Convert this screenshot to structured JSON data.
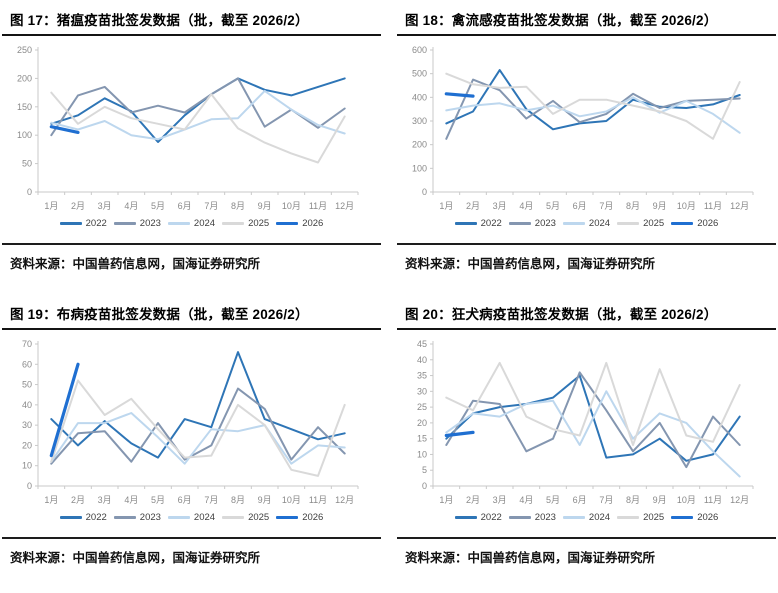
{
  "source_label": "资料来源：中国兽药信息网，国海证券研究所",
  "axis_color": "#8a8a8a",
  "chart_data": [
    {
      "type": "line",
      "title": "图 17：猪瘟疫苗批签发数据（批，截至 2026/2）",
      "source": "资料来源：中国兽药信息网，国海证券研究所",
      "categories": [
        "1月",
        "2月",
        "3月",
        "4月",
        "5月",
        "6月",
        "7月",
        "8月",
        "9月",
        "10月",
        "11月",
        "12月"
      ],
      "ylim": [
        0,
        250
      ],
      "ytick_step": 50,
      "grid": false,
      "legend_position": "bottom",
      "series": [
        {
          "name": "2022",
          "color": "#2E75B6",
          "width": 2,
          "values": [
            120,
            135,
            165,
            142,
            88,
            135,
            172,
            200,
            180,
            170,
            185,
            200
          ]
        },
        {
          "name": "2023",
          "color": "#8496B0",
          "width": 2,
          "values": [
            100,
            170,
            185,
            140,
            152,
            140,
            172,
            200,
            115,
            145,
            113,
            147
          ]
        },
        {
          "name": "2024",
          "color": "#BDD7EE",
          "width": 2,
          "values": [
            122,
            110,
            125,
            100,
            93,
            110,
            128,
            130,
            178,
            145,
            118,
            103
          ]
        },
        {
          "name": "2025",
          "color": "#D9D9D9",
          "width": 2,
          "values": [
            175,
            120,
            150,
            130,
            120,
            110,
            172,
            112,
            87,
            68,
            52,
            133
          ]
        },
        {
          "name": "2026",
          "color": "#1F6FD1",
          "width": 3.2,
          "values": [
            115,
            105
          ]
        }
      ]
    },
    {
      "type": "line",
      "title": "图 18：禽流感疫苗批签发数据（批，截至 2026/2）",
      "source": "资料来源：中国兽药信息网，国海证券研究所",
      "categories": [
        "1月",
        "2月",
        "3月",
        "4月",
        "5月",
        "6月",
        "7月",
        "8月",
        "9月",
        "10月",
        "11月",
        "12月"
      ],
      "ylim": [
        0,
        600
      ],
      "ytick_step": 100,
      "grid": false,
      "legend_position": "bottom",
      "series": [
        {
          "name": "2022",
          "color": "#2E75B6",
          "width": 2,
          "values": [
            290,
            340,
            515,
            350,
            265,
            290,
            300,
            390,
            360,
            355,
            370,
            410
          ]
        },
        {
          "name": "2023",
          "color": "#8496B0",
          "width": 2,
          "values": [
            225,
            475,
            430,
            310,
            385,
            295,
            330,
            415,
            355,
            385,
            390,
            395
          ]
        },
        {
          "name": "2024",
          "color": "#BDD7EE",
          "width": 2,
          "values": [
            345,
            365,
            375,
            345,
            365,
            320,
            340,
            400,
            335,
            385,
            330,
            250
          ]
        },
        {
          "name": "2025",
          "color": "#D9D9D9",
          "width": 2,
          "values": [
            500,
            455,
            440,
            445,
            330,
            390,
            390,
            365,
            340,
            300,
            225,
            465
          ]
        },
        {
          "name": "2026",
          "color": "#1F6FD1",
          "width": 3.2,
          "values": [
            415,
            405
          ]
        }
      ]
    },
    {
      "type": "line",
      "title": "图 19：布病疫苗批签发数据（批，截至 2026/2）",
      "source": "资料来源：中国兽药信息网，国海证券研究所",
      "categories": [
        "1月",
        "2月",
        "3月",
        "4月",
        "5月",
        "6月",
        "7月",
        "8月",
        "9月",
        "10月",
        "11月",
        "12月"
      ],
      "ylim": [
        0,
        70
      ],
      "ytick_step": 10,
      "grid": false,
      "legend_position": "bottom",
      "series": [
        {
          "name": "2022",
          "color": "#2E75B6",
          "width": 2,
          "values": [
            33,
            20,
            32,
            21,
            14,
            33,
            29,
            66,
            33,
            28,
            23,
            26
          ]
        },
        {
          "name": "2023",
          "color": "#8496B0",
          "width": 2,
          "values": [
            11,
            26,
            27,
            12,
            31,
            13,
            20,
            48,
            38,
            13,
            29,
            16
          ]
        },
        {
          "name": "2024",
          "color": "#BDD7EE",
          "width": 2,
          "values": [
            12,
            31,
            31,
            36,
            24,
            11,
            28,
            27,
            30,
            11,
            20,
            19
          ]
        },
        {
          "name": "2025",
          "color": "#D9D9D9",
          "width": 2,
          "values": [
            12,
            52,
            35,
            43,
            28,
            14,
            15,
            40,
            30,
            8,
            5,
            40
          ]
        },
        {
          "name": "2026",
          "color": "#1F6FD1",
          "width": 3.2,
          "values": [
            15,
            60
          ]
        }
      ]
    },
    {
      "type": "line",
      "title": "图 20：狂犬病疫苗批签发数据（批，截至 2026/2）",
      "source": "资料来源：中国兽药信息网，国海证券研究所",
      "categories": [
        "1月",
        "2月",
        "3月",
        "4月",
        "5月",
        "6月",
        "7月",
        "8月",
        "9月",
        "10月",
        "11月",
        "12月"
      ],
      "ylim": [
        0,
        45
      ],
      "ytick_step": 5,
      "grid": false,
      "legend_position": "bottom",
      "series": [
        {
          "name": "2022",
          "color": "#2E75B6",
          "width": 2,
          "values": [
            15,
            23,
            25,
            26,
            28,
            35,
            9,
            10,
            15,
            8,
            10,
            22
          ]
        },
        {
          "name": "2023",
          "color": "#8496B0",
          "width": 2,
          "values": [
            13,
            27,
            26,
            11,
            15,
            36,
            24,
            11,
            20,
            6,
            22,
            13
          ]
        },
        {
          "name": "2024",
          "color": "#BDD7EE",
          "width": 2,
          "values": [
            17,
            23,
            22,
            26,
            27,
            13,
            30,
            15,
            23,
            20,
            11,
            3
          ]
        },
        {
          "name": "2025",
          "color": "#D9D9D9",
          "width": 2,
          "values": [
            28,
            24,
            39,
            22,
            18,
            16,
            39,
            13,
            37,
            16,
            14,
            32
          ]
        },
        {
          "name": "2026",
          "color": "#1F6FD1",
          "width": 3.2,
          "values": [
            16,
            17
          ]
        }
      ]
    }
  ]
}
